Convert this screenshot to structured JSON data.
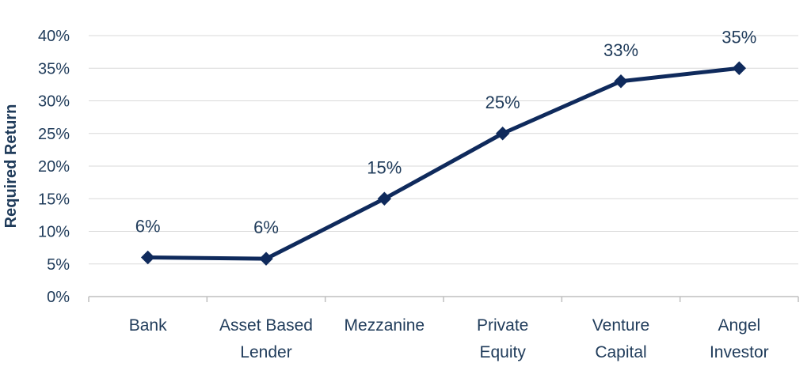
{
  "chart_data": {
    "type": "line",
    "title": "",
    "xlabel": "",
    "ylabel": "Required Return",
    "categories": [
      [
        "Bank"
      ],
      [
        "Asset Based",
        "Lender"
      ],
      [
        "Mezzanine"
      ],
      [
        "Private",
        "Equity"
      ],
      [
        "Venture",
        "Capital"
      ],
      [
        "Angel",
        "Investor"
      ]
    ],
    "series": [
      {
        "values": [
          6,
          5.8,
          15,
          25,
          33,
          35
        ]
      }
    ],
    "data_labels": [
      "6%",
      "6%",
      "15%",
      "25%",
      "33%",
      "35%"
    ],
    "y_ticks": [
      "0%",
      "5%",
      "10%",
      "15%",
      "20%",
      "25%",
      "30%",
      "35%",
      "40%"
    ],
    "ylim": [
      0,
      40
    ],
    "grid": true,
    "legend": "none",
    "colors": {
      "line": "#0f2a5c",
      "text": "#1f3b5a",
      "grid": "#d9d9d9",
      "axis": "#bfbfbf"
    }
  }
}
